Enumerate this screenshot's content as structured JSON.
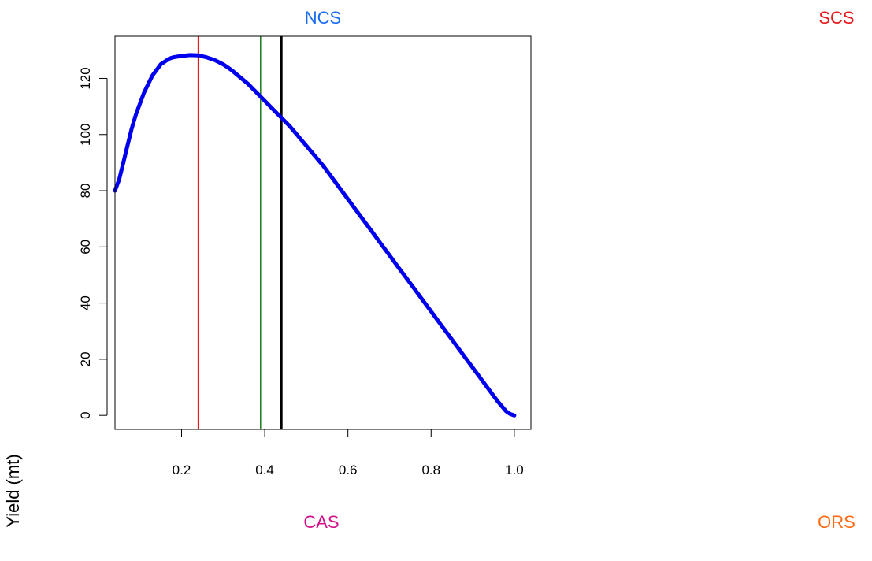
{
  "chart_data": {
    "type": "line",
    "title": "",
    "xlabel": "",
    "ylabel": "Yield (mt)",
    "xlim": [
      0.04,
      1.04
    ],
    "ylim": [
      -5,
      135
    ],
    "x_ticks": [
      0.2,
      0.4,
      0.6,
      0.8,
      1.0
    ],
    "x_tick_labels": [
      "0.2",
      "0.4",
      "0.6",
      "0.8",
      "1.0"
    ],
    "y_ticks": [
      0,
      20,
      40,
      60,
      80,
      100,
      120
    ],
    "y_tick_labels": [
      "0",
      "20",
      "40",
      "60",
      "80",
      "100",
      "120"
    ],
    "grid": false,
    "series": [
      {
        "color": "#0000ee",
        "x": [
          0.04,
          0.05,
          0.06,
          0.07,
          0.08,
          0.09,
          0.1,
          0.11,
          0.12,
          0.13,
          0.14,
          0.15,
          0.16,
          0.17,
          0.18,
          0.2,
          0.22,
          0.24,
          0.26,
          0.28,
          0.3,
          0.32,
          0.34,
          0.36,
          0.38,
          0.4,
          0.42,
          0.44,
          0.46,
          0.48,
          0.5,
          0.52,
          0.54,
          0.56,
          0.58,
          0.6,
          0.62,
          0.64,
          0.66,
          0.68,
          0.7,
          0.72,
          0.74,
          0.76,
          0.78,
          0.8,
          0.82,
          0.84,
          0.86,
          0.88,
          0.9,
          0.92,
          0.94,
          0.96,
          0.98,
          0.99,
          1.0
        ],
        "y": [
          80,
          84,
          90,
          96,
          102,
          107,
          111,
          115,
          118,
          121,
          123,
          125,
          126,
          127,
          127.5,
          128,
          128.3,
          128.2,
          127.5,
          126.5,
          125,
          123,
          120.5,
          118,
          115,
          112,
          109,
          106,
          103,
          99.5,
          96,
          92.5,
          89,
          85,
          81,
          77,
          73,
          69,
          65,
          61,
          57,
          53,
          49,
          45,
          41,
          37,
          33,
          29,
          25,
          21,
          17,
          13,
          9,
          5,
          1.5,
          0.5,
          0
        ]
      }
    ],
    "vertical_lines": [
      {
        "x": 0.24,
        "color": "#e8191b",
        "width": 1.5
      },
      {
        "x": 0.39,
        "color": "#1a7a1a",
        "width": 1.5
      },
      {
        "x": 0.44,
        "color": "#000000",
        "width": 3
      }
    ]
  },
  "region_labels": {
    "ncs": {
      "text": "NCS",
      "color": "#1a6cf0"
    },
    "scs": {
      "text": "SCS",
      "color": "#e8191b"
    },
    "cas": {
      "text": "CAS",
      "color": "#d10f8a"
    },
    "ors": {
      "text": "ORS",
      "color": "#ff6a10"
    }
  }
}
